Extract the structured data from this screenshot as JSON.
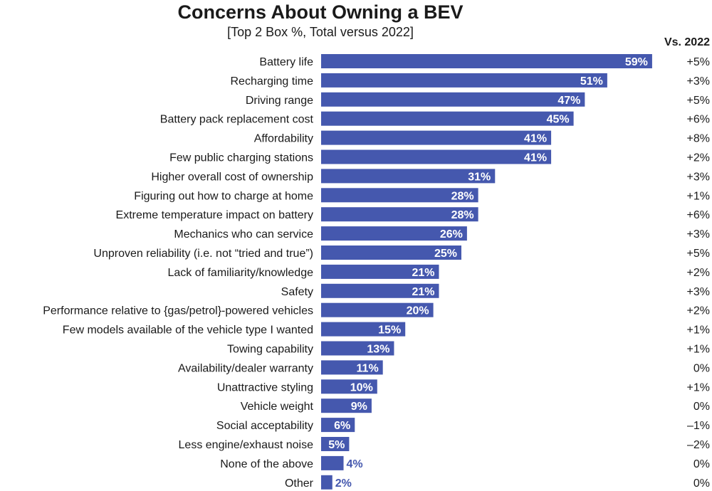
{
  "chart_data": {
    "type": "bar",
    "orientation": "horizontal",
    "title": "Concerns About Owning a BEV",
    "subtitle": "[Top 2 Box %, Total versus 2022]",
    "change_header": "Vs. 2022",
    "bar_color": "#4558ae",
    "xlim": [
      0,
      100
    ],
    "grid": false,
    "categories": [
      "Battery life",
      "Recharging time",
      "Driving range",
      "Battery pack replacement cost",
      "Affordability",
      "Few public charging stations",
      "Higher overall cost of ownership",
      "Figuring out how to charge at home",
      "Extreme temperature impact on battery",
      "Mechanics who can service",
      "Unproven reliability (i.e. not “tried and true”)",
      "Lack of familiarity/knowledge",
      "Safety",
      "Performance relative to {gas/petrol}-powered vehicles",
      "Few models available of the vehicle type I wanted",
      "Towing capability",
      "Availability/dealer warranty",
      "Unattractive styling",
      "Vehicle weight",
      "Social acceptability",
      "Less engine/exhaust noise",
      "None of the above",
      "Other"
    ],
    "values": [
      59,
      51,
      47,
      45,
      41,
      41,
      31,
      28,
      28,
      26,
      25,
      21,
      21,
      20,
      15,
      13,
      11,
      10,
      9,
      6,
      5,
      4,
      2
    ],
    "value_labels": [
      "59%",
      "51%",
      "47%",
      "45%",
      "41%",
      "41%",
      "31%",
      "28%",
      "28%",
      "26%",
      "25%",
      "21%",
      "21%",
      "20%",
      "15%",
      "13%",
      "11%",
      "10%",
      "9%",
      "6%",
      "5%",
      "4%",
      "2%"
    ],
    "vs_2022": [
      "+5%",
      "+3%",
      "+5%",
      "+6%",
      "+8%",
      "+2%",
      "+3%",
      "+1%",
      "+6%",
      "+3%",
      "+5%",
      "+2%",
      "+3%",
      "+2%",
      "+1%",
      "+1%",
      "0%",
      "+1%",
      "0%",
      "–1%",
      "–2%",
      "0%",
      "0%"
    ]
  }
}
